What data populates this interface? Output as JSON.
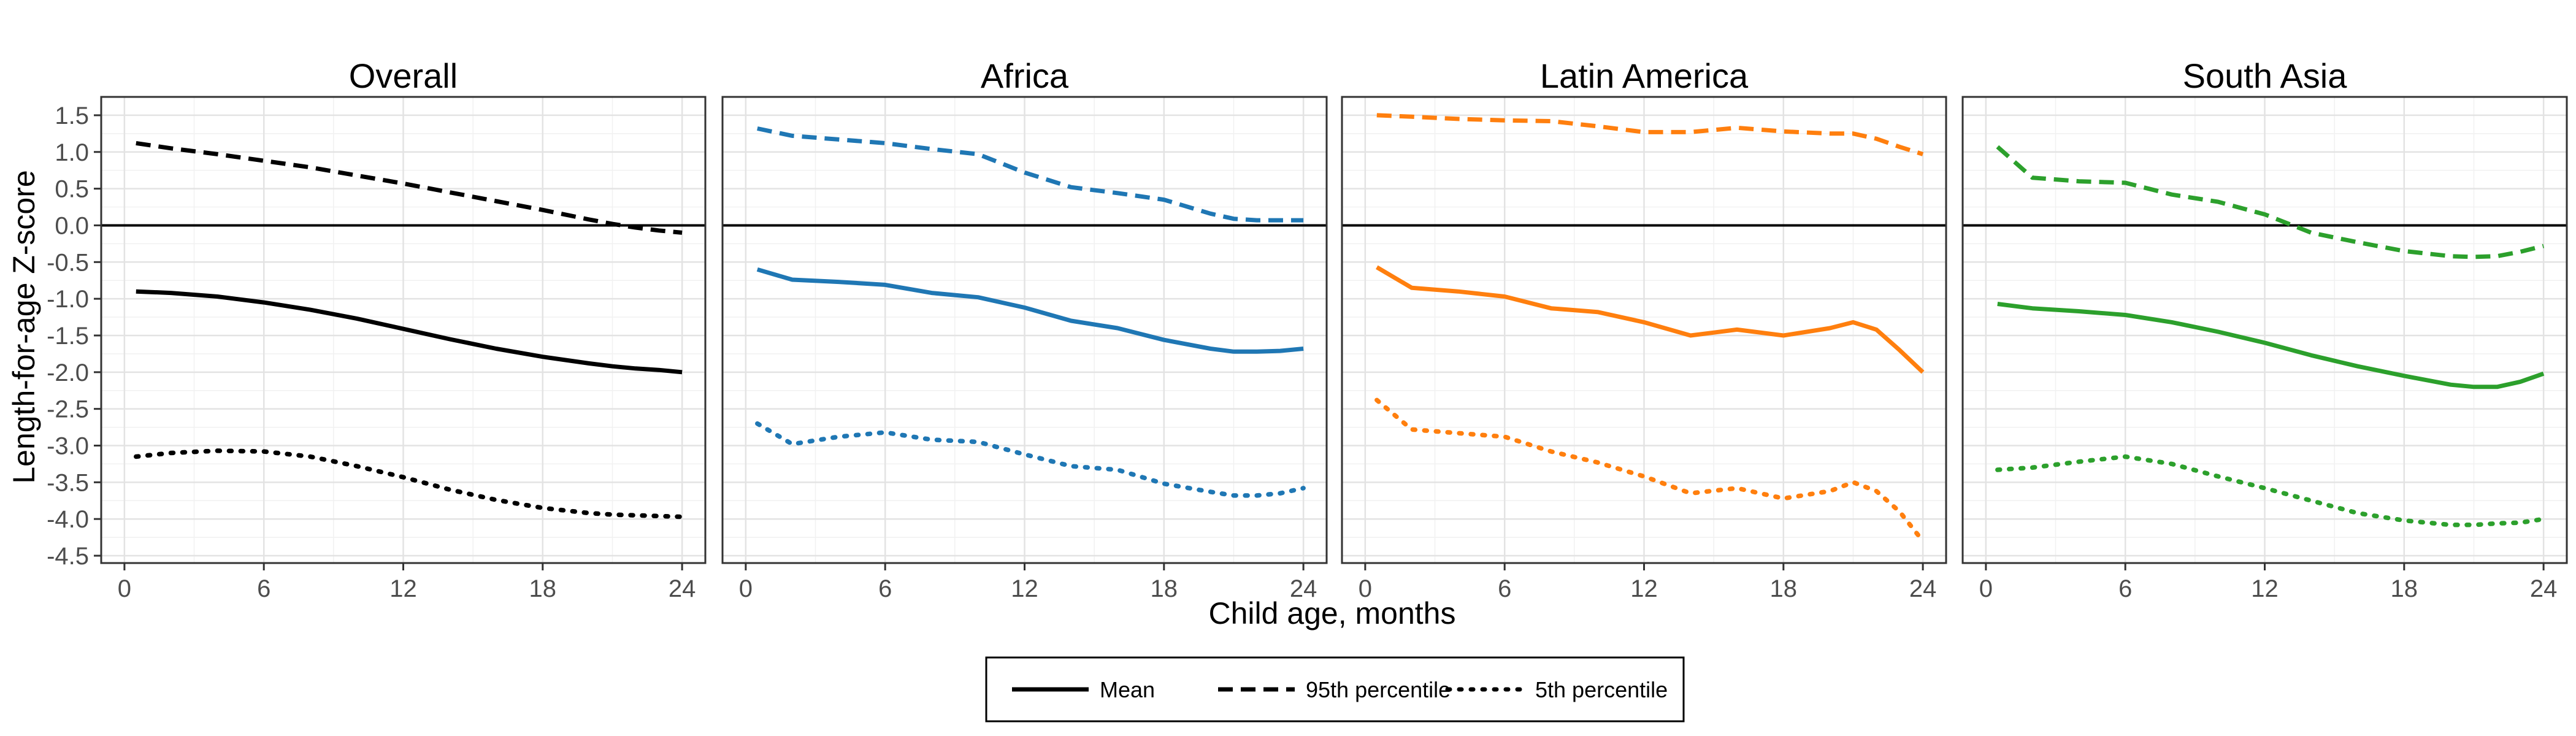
{
  "chart_data": {
    "type": "line",
    "xlabel": "Child age, months",
    "ylabel": "Length-for-age Z-score",
    "xlim": [
      -1,
      25
    ],
    "ylim": [
      -4.6,
      1.75
    ],
    "x_ticks": [
      0,
      6,
      12,
      18,
      24
    ],
    "y_ticks": [
      1.5,
      1.0,
      0.5,
      0.0,
      -0.5,
      -1.0,
      -1.5,
      -2.0,
      -2.5,
      -3.0,
      -3.5,
      -4.0,
      -4.5
    ],
    "y_tick_labels": [
      "1.5",
      "1.0",
      "0.5",
      "0.0",
      "-0.5",
      "-1.0",
      "-1.5",
      "-2.0",
      "-2.5",
      "-3.0",
      "-3.5",
      "-4.0",
      "-4.5"
    ],
    "reference_line_y": 0,
    "grid": true,
    "legend": {
      "position": "bottom",
      "entries": [
        {
          "label": "Mean",
          "style": "solid"
        },
        {
          "label": "95th percentile",
          "style": "dashed"
        },
        {
          "label": "5th percentile",
          "style": "dotted"
        }
      ]
    },
    "x": [
      0.5,
      2,
      4,
      6,
      8,
      10,
      12,
      14,
      16,
      18,
      20,
      21,
      22,
      23,
      24
    ],
    "panels": [
      {
        "title": "Overall",
        "color": "#000000",
        "series": [
          {
            "name": "Mean",
            "style": "solid",
            "values": [
              -0.9,
              -0.92,
              -0.97,
              -1.05,
              -1.15,
              -1.27,
              -1.41,
              -1.55,
              -1.68,
              -1.79,
              -1.88,
              -1.92,
              -1.95,
              -1.97,
              -2.0
            ]
          },
          {
            "name": "95th percentile",
            "style": "dashed",
            "values": [
              1.12,
              1.05,
              0.97,
              0.88,
              0.79,
              0.68,
              0.57,
              0.45,
              0.33,
              0.21,
              0.08,
              0.02,
              -0.03,
              -0.07,
              -0.1
            ]
          },
          {
            "name": "5th percentile",
            "style": "dotted",
            "values": [
              -3.15,
              -3.1,
              -3.07,
              -3.08,
              -3.15,
              -3.28,
              -3.43,
              -3.6,
              -3.74,
              -3.85,
              -3.92,
              -3.94,
              -3.95,
              -3.96,
              -3.97
            ]
          }
        ]
      },
      {
        "title": "Africa",
        "color": "#1f77b4",
        "series": [
          {
            "name": "Mean",
            "style": "solid",
            "values": [
              -0.6,
              -0.74,
              -0.77,
              -0.81,
              -0.92,
              -0.98,
              -1.12,
              -1.3,
              -1.4,
              -1.56,
              -1.68,
              -1.72,
              -1.72,
              -1.71,
              -1.68
            ]
          },
          {
            "name": "95th percentile",
            "style": "dashed",
            "values": [
              1.32,
              1.22,
              1.17,
              1.12,
              1.04,
              0.97,
              0.72,
              0.52,
              0.44,
              0.35,
              0.16,
              0.09,
              0.07,
              0.07,
              0.07
            ]
          },
          {
            "name": "5th percentile",
            "style": "dotted",
            "values": [
              -2.7,
              -2.98,
              -2.88,
              -2.82,
              -2.92,
              -2.95,
              -3.12,
              -3.28,
              -3.33,
              -3.52,
              -3.63,
              -3.68,
              -3.68,
              -3.65,
              -3.58
            ]
          }
        ]
      },
      {
        "title": "Latin America",
        "color": "#ff7f0e",
        "series": [
          {
            "name": "Mean",
            "style": "solid",
            "values": [
              -0.57,
              -0.85,
              -0.9,
              -0.97,
              -1.13,
              -1.18,
              -1.32,
              -1.5,
              -1.42,
              -1.5,
              -1.4,
              -1.32,
              -1.42,
              -1.7,
              -2.0
            ]
          },
          {
            "name": "95th percentile",
            "style": "dashed",
            "values": [
              1.5,
              1.48,
              1.45,
              1.43,
              1.42,
              1.35,
              1.27,
              1.27,
              1.33,
              1.28,
              1.25,
              1.25,
              1.18,
              1.07,
              0.97
            ]
          },
          {
            "name": "5th percentile",
            "style": "dotted",
            "values": [
              -2.38,
              -2.78,
              -2.83,
              -2.88,
              -3.08,
              -3.23,
              -3.42,
              -3.65,
              -3.58,
              -3.72,
              -3.62,
              -3.5,
              -3.62,
              -3.9,
              -4.3
            ]
          }
        ]
      },
      {
        "title": "South Asia",
        "color": "#2ca02c",
        "series": [
          {
            "name": "Mean",
            "style": "solid",
            "values": [
              -1.07,
              -1.13,
              -1.17,
              -1.22,
              -1.32,
              -1.45,
              -1.6,
              -1.77,
              -1.92,
              -2.05,
              -2.17,
              -2.2,
              -2.2,
              -2.13,
              -2.02
            ]
          },
          {
            "name": "95th percentile",
            "style": "dashed",
            "values": [
              1.07,
              0.65,
              0.6,
              0.58,
              0.42,
              0.32,
              0.15,
              -0.1,
              -0.23,
              -0.35,
              -0.42,
              -0.43,
              -0.42,
              -0.36,
              -0.28
            ]
          },
          {
            "name": "5th percentile",
            "style": "dotted",
            "values": [
              -3.33,
              -3.3,
              -3.22,
              -3.15,
              -3.25,
              -3.42,
              -3.58,
              -3.75,
              -3.92,
              -4.02,
              -4.08,
              -4.08,
              -4.06,
              -4.05,
              -4.0
            ]
          }
        ]
      }
    ]
  }
}
